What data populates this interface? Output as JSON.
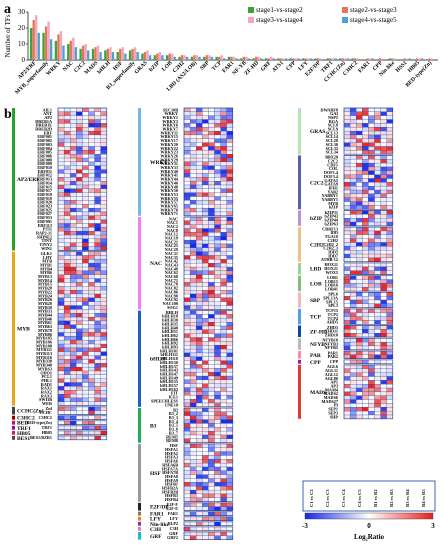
{
  "panels": {
    "a": "a",
    "b": "b"
  },
  "chart_data": [
    {
      "type": "bar",
      "ylabel": "Number of TFs",
      "ylim": [
        0,
        30
      ],
      "yticks": [
        "0",
        "10",
        "20",
        "30"
      ],
      "categories": [
        "AP2/ERF",
        "MYB_superfamily",
        "WRKY",
        "NAC",
        "C2C2",
        "MADS",
        "bHLH",
        "HSF",
        "B3_superfamily",
        "GRAS",
        "bZIP",
        "LOB",
        "C2H2",
        "LBD (AS2/LOB)",
        "SBP",
        "TCP",
        "FAR1",
        "NF-YB",
        "ZF-HD",
        "GRF",
        "ATS1",
        "CPP",
        "LFY",
        "E2F/DP",
        "TRF1",
        "CCHC(Zn)",
        "C3HC2",
        "FAR1",
        "CPP",
        "Nin-like",
        "HSS1",
        "HB05",
        "BED-type(Zn)"
      ],
      "series": [
        {
          "name": "stage1-vs-stage2",
          "color": "#3aa33a",
          "values": [
            20,
            17,
            12,
            10,
            7,
            7,
            6,
            5,
            6,
            4,
            3,
            3,
            2,
            2,
            2,
            2,
            2,
            1,
            1,
            1,
            1,
            1,
            1,
            1,
            1,
            1,
            1,
            0,
            0,
            1,
            0,
            0,
            0
          ]
        },
        {
          "name": "stage2-vs-stage3",
          "color": "#e8735a",
          "values": [
            25,
            21,
            16,
            12,
            9,
            8,
            7,
            7,
            7,
            5,
            4,
            4,
            3,
            3,
            3,
            2,
            2,
            2,
            2,
            1,
            1,
            1,
            1,
            1,
            1,
            1,
            1,
            1,
            1,
            1,
            1,
            1,
            1
          ]
        },
        {
          "name": "stage3-vs-stage4",
          "color": "#f2a7b6",
          "values": [
            28,
            24,
            18,
            14,
            10,
            9,
            8,
            8,
            8,
            6,
            5,
            4,
            3,
            3,
            3,
            3,
            2,
            2,
            2,
            2,
            1,
            1,
            1,
            1,
            1,
            1,
            1,
            1,
            1,
            1,
            1,
            1,
            1
          ]
        },
        {
          "name": "stage4-vs-stage5",
          "color": "#4f9fd8",
          "values": [
            17,
            13,
            9,
            8,
            6,
            5,
            5,
            4,
            5,
            3,
            3,
            2,
            2,
            2,
            2,
            1,
            1,
            1,
            1,
            1,
            1,
            1,
            1,
            0,
            1,
            1,
            0,
            1,
            0,
            0,
            1,
            1,
            0
          ]
        }
      ],
      "legend_position": "top-right"
    },
    {
      "type": "heatmap",
      "colorbar": {
        "min": -3,
        "mid": 0,
        "max": 3,
        "label": "Log₂Ratio",
        "tick_min": "-3",
        "tick_mid": "0",
        "tick_max": "3"
      },
      "column_labels": [
        "C1 vs C2",
        "C2 vs C3",
        "C3 vs C4",
        "C4 vs C5",
        "R1 vs R2",
        "R2 vs R3",
        "R3 vs R4",
        "R4 vs R5"
      ],
      "blocks": [
        {
          "family": "AP2/ERF",
          "color": "#2ca02c",
          "genes": [
            "AIL1",
            "ANT",
            "AP2",
            "DREB1A",
            "DREB1E",
            "DREB2D",
            "ERF",
            "ERF001",
            "ERF002",
            "ERF003",
            "ERF004",
            "ERF005",
            "ERF006",
            "ERF008",
            "ERF009",
            "ERF010",
            "ERF011",
            "ERF012",
            "ERF013",
            "ERF014",
            "ERF015",
            "ERF017",
            "ERF018",
            "ERF019",
            "ERF020",
            "ERF023",
            "ERF025",
            "ERF027",
            "ERF053",
            "ERF091",
            "ERF113",
            "PTI1",
            "RAP2-11",
            "SHINE2",
            "TINY",
            "TINY2",
            "WIN1"
          ]
        },
        {
          "family": "MYB",
          "color": "#e6a817",
          "genes": [
            "GLK1",
            "LHY",
            "MYB",
            "MYB1",
            "MYB4",
            "MYB6",
            "MYB13",
            "MYB14",
            "MYB15",
            "MYB20",
            "MYB22",
            "MYB24",
            "MYB26",
            "MYB28",
            "MYB30",
            "MYB33",
            "MYB44",
            "MYB46",
            "MYB61",
            "MYB63",
            "MYB78",
            "MYB86",
            "MYB105",
            "MYB106",
            "MYB108",
            "MYB111",
            "MYB113",
            "MYB116",
            "MYB330",
            "MYB340",
            "MYBS3",
            "ODO1",
            "PCL1",
            "PHL1",
            "RAD1",
            "RAX1",
            "RAX2",
            "RAX3",
            "SWI3B",
            "WER"
          ]
        },
        {
          "family": "CCHC(Zn)",
          "color": "#444444",
          "genes": [
            "Znf",
            "CCHC"
          ]
        },
        {
          "family": "C3HC2",
          "color": "#8b0000",
          "genes": [
            "C3HC2"
          ]
        },
        {
          "family": "BED",
          "color": "#c2185b",
          "genes": [
            "BED-type(Zn)"
          ]
        },
        {
          "family": "TRF1",
          "color": "#7b1fa2",
          "genes": [
            "TRF1"
          ]
        },
        {
          "family": "HB05",
          "color": "#d81b60",
          "genes": [
            "HB05"
          ]
        },
        {
          "family": "BES1",
          "color": "#5d4037",
          "genes": [
            "BES1/BZR1"
          ]
        },
        {
          "family": "WRKY",
          "color": "#76b7e5",
          "genes": [
            "SEC10B",
            "WRKY",
            "WRKY1",
            "WRKY3",
            "WRKY6",
            "WRKY7",
            "WRKY11",
            "WRKY15",
            "WRKY17",
            "WRKY20",
            "WRKY22",
            "WRKY23",
            "WRKY26",
            "WRKY29",
            "WRKY31",
            "WRKY33",
            "WRKY40",
            "WRKY41",
            "WRKY44",
            "WRKY46",
            "WRKY48",
            "WRKY50",
            "WRKY53",
            "WRKY55",
            "WRKY57",
            "WRKY65",
            "WRKY70",
            "WRKY71"
          ]
        },
        {
          "family": "NAC",
          "color": "#ee82ee",
          "genes": [
            "NAC",
            "NAC1",
            "NAC2",
            "NAC8",
            "NAC12",
            "NAC19",
            "NAC21",
            "NAC25",
            "NAC29",
            "NAC31",
            "NAC35",
            "NAC42",
            "NAC43",
            "NAC48",
            "NAC62",
            "NAC68",
            "NAC71",
            "NAC78",
            "NAC82",
            "NAC86",
            "NAC90",
            "NAC92",
            "NAC100",
            "SOG1"
          ]
        },
        {
          "family": "bHLH",
          "color": "#1f5fbf",
          "genes": [
            "BHLH",
            "bHLH18",
            "bHLH30",
            "bHLH35",
            "bHLH48",
            "bHLH51",
            "bHLH62",
            "bHLH66",
            "bHLH92",
            "bHLH93",
            "bHLH101",
            "bHLH111",
            "bHLH118",
            "bHLH130",
            "bHLH137",
            "bHLH143",
            "bHLH147",
            "bHLH149",
            "bHLH155",
            "bHLH157",
            "bHLH162",
            "FIT",
            "ICE1",
            "SPEECHLESS",
            "UNE10"
          ]
        },
        {
          "family": "B3",
          "color": "#22aa55",
          "genes": [
            "B3",
            "B3_2",
            "B3_3",
            "B3_4",
            "B3_5",
            "B3_6",
            "B3_7",
            "REM5",
            "REM8"
          ]
        },
        {
          "family": "HSF",
          "color": "#999999",
          "genes": [
            "HSF",
            "HSFA1",
            "HSFA2",
            "HSFA3",
            "HSFA6",
            "HSFA6B",
            "HSFA7A",
            "HSFA7B",
            "HSFA8",
            "HSFA9",
            "HSFB1",
            "HSFB2A",
            "HSFB2B",
            "HSFB3",
            "HSFB4"
          ]
        },
        {
          "family": "E2F/DP",
          "color": "#222222",
          "genes": [
            "E2F-F",
            "E2F-E"
          ]
        },
        {
          "family": "FAR1",
          "color": "#8d6e63",
          "genes": [
            "FAR1"
          ]
        },
        {
          "family": "LFY",
          "color": "#ff7f0e",
          "genes": [
            "LFY"
          ]
        },
        {
          "family": "Nin-like",
          "color": "#6a3d9a",
          "genes": [
            "NLP2"
          ]
        },
        {
          "family": "C3H",
          "color": "#e377c2",
          "genes": [
            "C3H"
          ]
        },
        {
          "family": "GRF",
          "color": "#17becf",
          "genes": [
            "GRF",
            "GRF2"
          ]
        },
        {
          "family": "GRAS",
          "color": "#b6e3b6",
          "genes": [
            "DWARF8",
            "GAI",
            "NSP2",
            "RGA",
            "SCL8",
            "SCL9",
            "SCL13",
            "SCL14",
            "SCL28",
            "SCL30",
            "SCL32",
            "SCL34"
          ]
        },
        {
          "family": "C2C2",
          "color": "#5b5ea6",
          "genes": [
            "BBX20",
            "C2C2",
            "CDF1",
            "COL",
            "DOF1.4",
            "DOF3.4",
            "GATA5",
            "GATA9",
            "IFH1",
            "YAB2",
            "YABBY1",
            "YABBY5",
            "MYB",
            "bZIP"
          ]
        },
        {
          "family": "bZIP",
          "color": "#ba93d8",
          "genes": [
            "bZIP11",
            "bZIP43",
            "bZIP44",
            "bZIP63"
          ]
        },
        {
          "family": "C2H2",
          "color": "#f0c080",
          "genes": [
            "CRRF13",
            "IDD",
            "TGA10",
            "C2H2",
            "C2H2_2",
            "C2H2_3",
            "IDD5",
            "IDD7",
            "ATHB-12"
          ]
        },
        {
          "family": "LBD",
          "color": "#9ad29a",
          "genes": [
            "HOX11",
            "HOX21",
            "WOX5"
          ]
        },
        {
          "family": "LOB",
          "color": "#7fbf7f",
          "genes": [
            "LOB1",
            "LOB15",
            "LOB16",
            "LOB41"
          ]
        },
        {
          "family": "SBP",
          "color": "#f4b6c2",
          "genes": [
            "SPL6",
            "SPL13A",
            "SPL15",
            "SPL3"
          ]
        },
        {
          "family": "TCP",
          "color": "#4fa3e0",
          "genes": [
            "TCP15",
            "TCP2",
            "TCP4",
            "AHD5"
          ]
        },
        {
          "family": "ZF-HD",
          "color": "#0d47a1",
          "genes": [
            "ZHD3",
            "ZHD11",
            "ZHD10"
          ]
        },
        {
          "family": "NFYB",
          "color": "#bbbbbb",
          "genes": [
            "NFYB10",
            "NFYB3",
            "NFYB5"
          ]
        },
        {
          "family": "PAR",
          "color": "#f48fb1",
          "genes": [
            "PAR1",
            "PAR2"
          ]
        },
        {
          "family": "CPP",
          "color": "#8e24aa",
          "genes": [
            "CPP"
          ]
        },
        {
          "family": "MADS",
          "color": "#e53935",
          "genes": [
            "AGL6",
            "AGL11",
            "AGL12",
            "AGL80",
            "AP1",
            "AP3",
            "MAM4",
            "MADS2",
            "MADS6",
            "MADS27",
            "PI",
            "SEP1",
            "SEP3",
            "SHP"
          ]
        }
      ]
    }
  ]
}
